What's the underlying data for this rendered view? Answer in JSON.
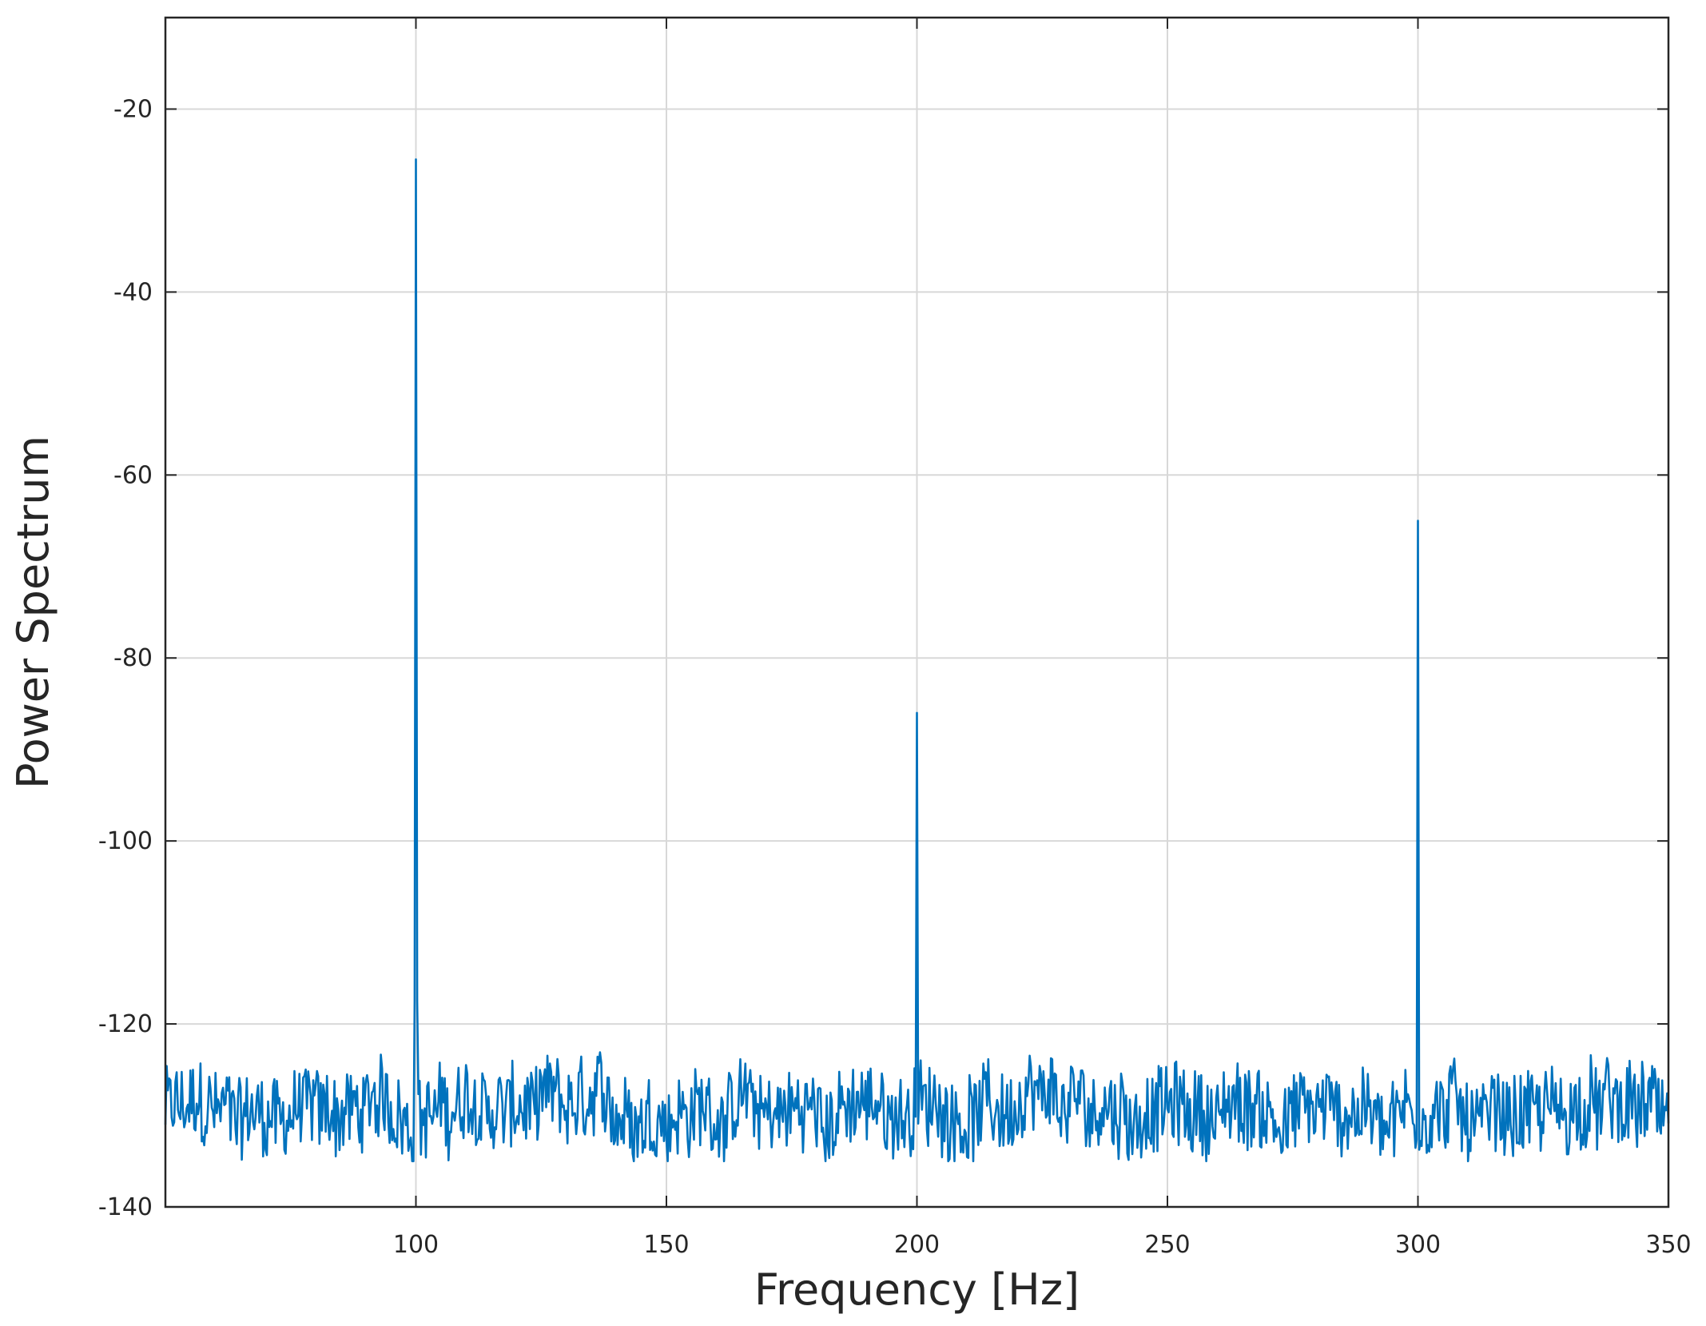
{
  "chart_data": {
    "type": "line",
    "xlabel": "Frequency [Hz]",
    "ylabel": "Power Spectrum",
    "xlim": [
      50,
      350
    ],
    "ylim": [
      -140,
      -10
    ],
    "xticks": [
      100,
      150,
      200,
      250,
      300,
      350
    ],
    "xtick_labels": [
      "100",
      "150",
      "200",
      "250",
      "300",
      "350"
    ],
    "yticks": [
      -20,
      -40,
      -60,
      -80,
      -100,
      -120,
      -140
    ],
    "ytick_labels": [
      "-20",
      "-40",
      "-60",
      "-80",
      "-100",
      "-120",
      "-140"
    ],
    "grid": true,
    "line_color": "#0072BD",
    "noise_floor": {
      "mean": -129.5,
      "min": -135,
      "max": -123,
      "x_step": 0.25
    },
    "peaks": [
      {
        "x": 100,
        "y": -25.5
      },
      {
        "x": 200,
        "y": -86
      },
      {
        "x": 300,
        "y": -65
      }
    ]
  }
}
